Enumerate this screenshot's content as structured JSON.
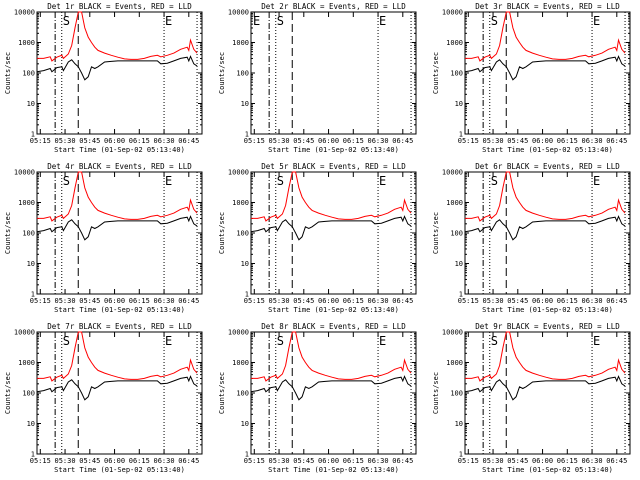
{
  "chart_data": {
    "type": "line",
    "yscale": "log",
    "ylim": [
      1,
      10000
    ],
    "ylabel": "Counts/sec",
    "xlabel": "Start Time (01-Sep-02 05:13:40)",
    "x_tick_labels": [
      "05:15",
      "05:30",
      "05:45",
      "06:00",
      "06:15",
      "06:30",
      "06:45"
    ],
    "y_tick_labels": [
      "1",
      "10",
      "100",
      "1000",
      "10000"
    ],
    "series_legend": "BLACK = Events, RED = LLD",
    "series_colors": {
      "events": "#000000",
      "lld": "#ff0000"
    },
    "times": [
      "05:13",
      "05:17",
      "05:21",
      "05:22",
      "05:25",
      "05:28",
      "05:29",
      "05:32",
      "05:34",
      "05:36",
      "05:38",
      "05:40",
      "05:42",
      "05:44",
      "05:46",
      "05:48",
      "05:50",
      "05:54",
      "05:58",
      "06:02",
      "06:06",
      "06:10",
      "06:14",
      "06:18",
      "06:22",
      "06:26",
      "06:28",
      "06:32",
      "06:36",
      "06:40",
      "06:44",
      "06:45",
      "06:46",
      "06:48",
      "06:50"
    ],
    "events": [
      110,
      120,
      140,
      110,
      150,
      160,
      120,
      230,
      270,
      200,
      160,
      100,
      60,
      75,
      160,
      140,
      160,
      230,
      240,
      250,
      250,
      250,
      250,
      250,
      250,
      250,
      200,
      210,
      250,
      300,
      330,
      250,
      350,
      200,
      170
    ],
    "lld": [
      300,
      300,
      340,
      250,
      330,
      380,
      300,
      420,
      800,
      3000,
      12000,
      12000,
      3000,
      1500,
      1000,
      700,
      550,
      450,
      380,
      330,
      290,
      280,
      280,
      300,
      350,
      380,
      340,
      380,
      450,
      600,
      700,
      550,
      1200,
      600,
      450
    ],
    "markers": {
      "dash_dot_time": "05:24",
      "dashed_time": "05:38",
      "dotted_times": [
        "05:28",
        "06:30",
        "06:50"
      ]
    },
    "panels": [
      {
        "title": "Det 1r BLACK = Events, RED = LLD",
        "flags": [
          "S",
          "E"
        ],
        "has_data": true
      },
      {
        "title": "Det 2r BLACK = Events, RED = LLD",
        "flags": [
          "E",
          "S",
          "E"
        ],
        "has_data": false
      },
      {
        "title": "Det 3r BLACK = Events, RED = LLD",
        "flags": [
          "S",
          "E"
        ],
        "has_data": true
      },
      {
        "title": "Det 4r BLACK = Events, RED = LLD",
        "flags": [
          "S",
          "E"
        ],
        "has_data": true
      },
      {
        "title": "Det 5r BLACK = Events, RED = LLD",
        "flags": [
          "S",
          "E"
        ],
        "has_data": true
      },
      {
        "title": "Det 6r BLACK = Events, RED = LLD",
        "flags": [
          "S",
          "E"
        ],
        "has_data": true
      },
      {
        "title": "Det 7r BLACK = Events, RED = LLD",
        "flags": [
          "S",
          "E"
        ],
        "has_data": true
      },
      {
        "title": "Det 8r BLACK = Events, RED = LLD",
        "flags": [
          "S",
          "E"
        ],
        "has_data": true
      },
      {
        "title": "Det 9r BLACK = Events, RED = LLD",
        "flags": [
          "S",
          "E"
        ],
        "has_data": true
      }
    ]
  }
}
